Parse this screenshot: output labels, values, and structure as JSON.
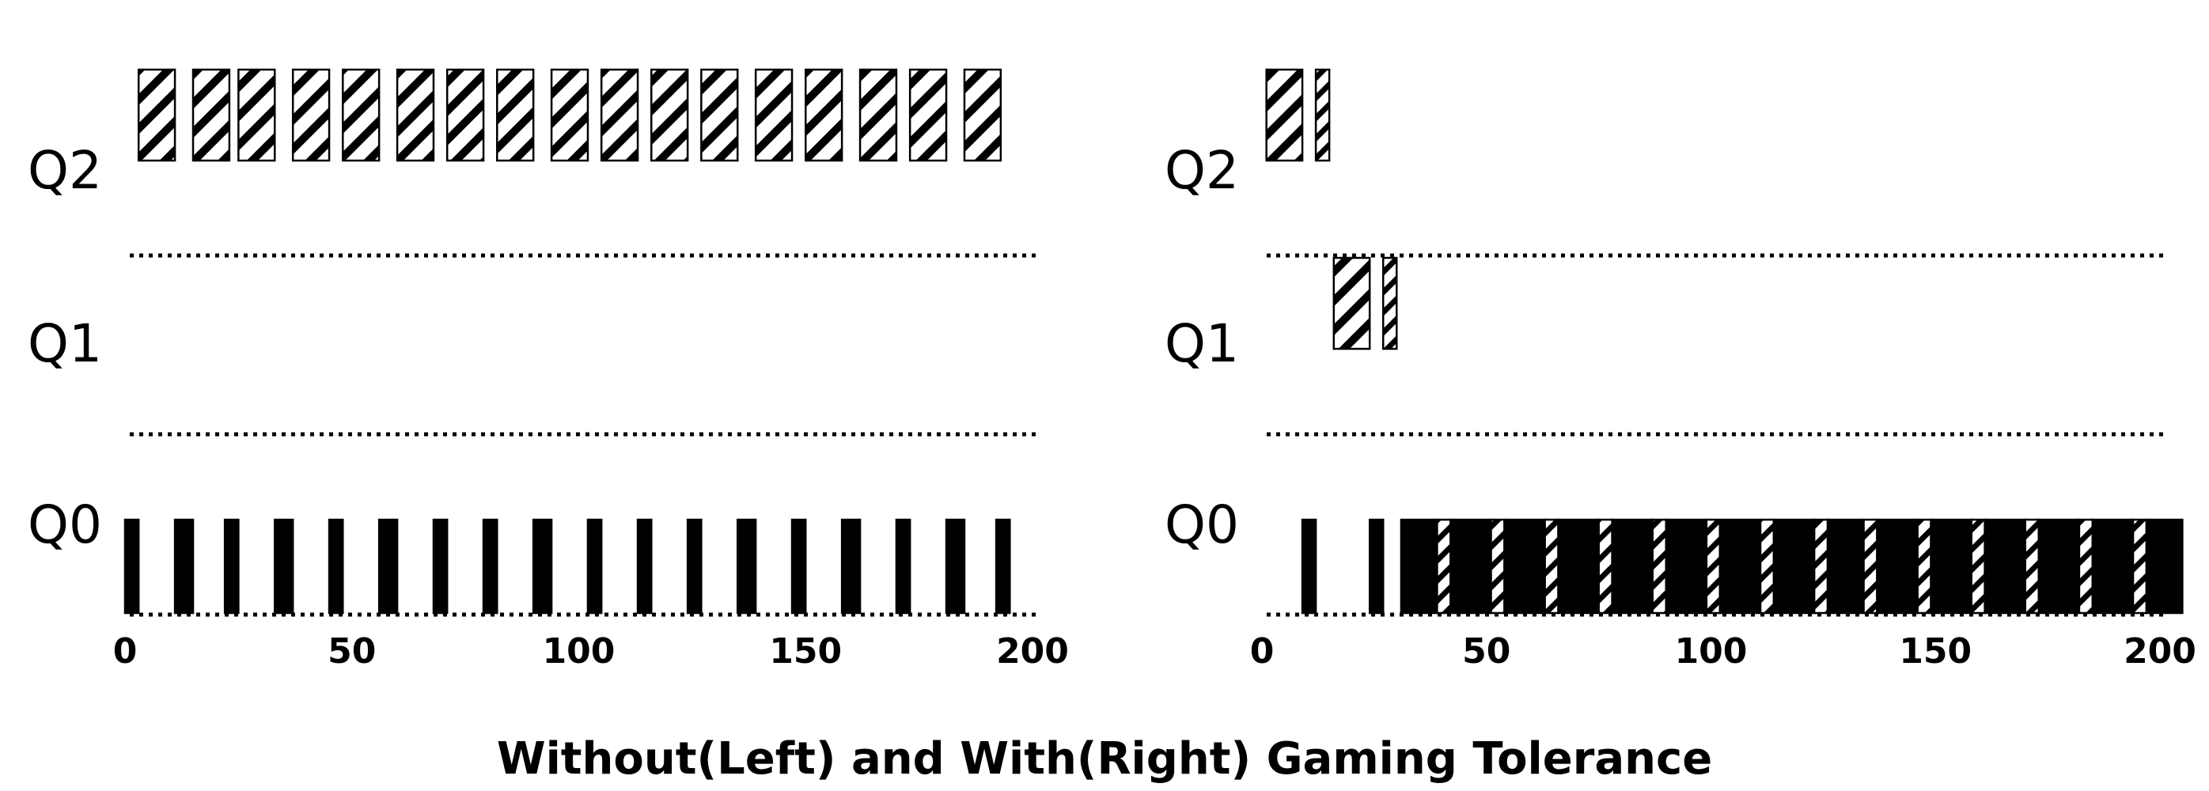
{
  "caption": "Without(Left) and With(Right) Gaming Tolerance",
  "colors": {
    "ink": "#000000",
    "background": "#ffffff"
  },
  "chart_data": [
    {
      "type": "timeline",
      "panel": "left",
      "x_ticks": [
        "0",
        "50",
        "100",
        "150",
        "200"
      ],
      "xlim": [
        0,
        200
      ],
      "queues": [
        "Q2",
        "Q1",
        "Q0"
      ],
      "jobs": [
        {
          "queue": "Q2",
          "style": "hatched",
          "intervals": [
            [
              3,
              11
            ],
            [
              15,
              23
            ],
            [
              25,
              33
            ],
            [
              37,
              45
            ],
            [
              48,
              56
            ],
            [
              60,
              68
            ],
            [
              71,
              79
            ],
            [
              82,
              90
            ],
            [
              94,
              102
            ],
            [
              105,
              113
            ],
            [
              116,
              124
            ],
            [
              127,
              135
            ],
            [
              139,
              147
            ],
            [
              150,
              158
            ],
            [
              162,
              170
            ],
            [
              173,
              181
            ],
            [
              185,
              193
            ]
          ]
        },
        {
          "queue": "Q0",
          "style": "solid",
          "intervals": [
            [
              0,
              3
            ],
            [
              11,
              15
            ],
            [
              22,
              25
            ],
            [
              33,
              37
            ],
            [
              45,
              48
            ],
            [
              56,
              60
            ],
            [
              68,
              71
            ],
            [
              79,
              82
            ],
            [
              90,
              94
            ],
            [
              102,
              105
            ],
            [
              113,
              116
            ],
            [
              124,
              127
            ],
            [
              135,
              139
            ],
            [
              147,
              150
            ],
            [
              158,
              162
            ],
            [
              170,
              173
            ],
            [
              181,
              185
            ],
            [
              192,
              195
            ]
          ]
        }
      ]
    },
    {
      "type": "timeline",
      "panel": "right",
      "x_ticks": [
        "0",
        "50",
        "100",
        "150",
        "200"
      ],
      "xlim": [
        0,
        200
      ],
      "queues": [
        "Q2",
        "Q1",
        "Q0"
      ],
      "jobs": [
        {
          "queue": "Q2",
          "style": "hatched",
          "intervals": [
            [
              1,
              9
            ]
          ]
        },
        {
          "queue": "Q2",
          "style": "hatched-thin",
          "intervals": [
            [
              12,
              15
            ]
          ]
        },
        {
          "queue": "Q1",
          "style": "hatched",
          "intervals": [
            [
              16,
              24
            ]
          ]
        },
        {
          "queue": "Q1",
          "style": "hatched-thin",
          "intervals": [
            [
              27,
              30
            ]
          ]
        },
        {
          "queue": "Q0",
          "style": "hatched-thin",
          "intervals": [
            [
              39,
              42
            ],
            [
              51,
              54
            ],
            [
              63,
              66
            ],
            [
              75,
              78
            ],
            [
              87,
              90
            ],
            [
              99,
              102
            ],
            [
              111,
              114
            ],
            [
              123,
              126
            ],
            [
              134,
              137
            ],
            [
              146,
              149
            ],
            [
              158,
              161
            ],
            [
              170,
              173
            ],
            [
              182,
              185
            ],
            [
              194,
              197
            ]
          ]
        },
        {
          "queue": "Q0",
          "style": "solid",
          "intervals": [
            [
              9,
              12
            ],
            [
              24,
              27
            ],
            [
              31,
              39
            ],
            [
              42,
              51
            ],
            [
              54,
              63
            ],
            [
              66,
              75
            ],
            [
              78,
              87
            ],
            [
              90,
              99
            ],
            [
              102,
              111
            ],
            [
              114,
              123
            ],
            [
              126,
              134
            ],
            [
              137,
              146
            ],
            [
              149,
              158
            ],
            [
              161,
              170
            ],
            [
              173,
              182
            ],
            [
              185,
              194
            ],
            [
              197,
              205
            ]
          ]
        }
      ]
    }
  ]
}
